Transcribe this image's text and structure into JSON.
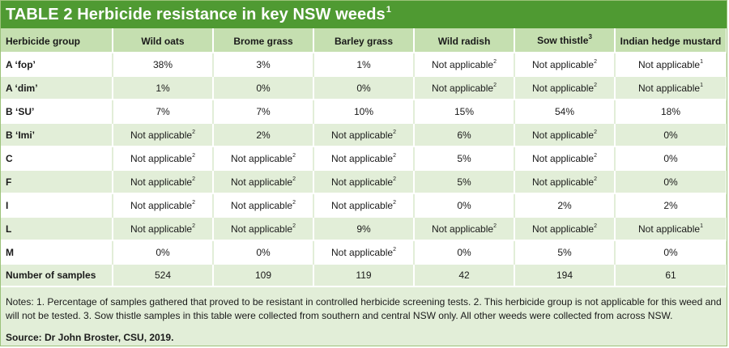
{
  "table": {
    "title": "TABLE 2  Herbicide resistance in key NSW weeds",
    "title_sup": "1",
    "headers": [
      {
        "label": "Herbicide group",
        "sup": ""
      },
      {
        "label": "Wild oats",
        "sup": ""
      },
      {
        "label": "Brome grass",
        "sup": ""
      },
      {
        "label": "Barley grass",
        "sup": ""
      },
      {
        "label": "Wild radish",
        "sup": ""
      },
      {
        "label": "Sow thistle",
        "sup": "3"
      },
      {
        "label": "Indian hedge mustard",
        "sup": ""
      }
    ],
    "rows": [
      {
        "group": "A ‘fop’",
        "cells": [
          {
            "v": "38%",
            "sup": ""
          },
          {
            "v": "3%",
            "sup": ""
          },
          {
            "v": "1%",
            "sup": ""
          },
          {
            "v": "Not applicable",
            "sup": "2"
          },
          {
            "v": "Not applicable",
            "sup": "2"
          },
          {
            "v": "Not applicable",
            "sup": "1"
          }
        ]
      },
      {
        "group": "A ‘dim’",
        "cells": [
          {
            "v": "1%",
            "sup": ""
          },
          {
            "v": "0%",
            "sup": ""
          },
          {
            "v": "0%",
            "sup": ""
          },
          {
            "v": "Not applicable",
            "sup": "2"
          },
          {
            "v": "Not applicable",
            "sup": "2"
          },
          {
            "v": "Not applicable",
            "sup": "1"
          }
        ]
      },
      {
        "group": "B ‘SU’",
        "cells": [
          {
            "v": "7%",
            "sup": ""
          },
          {
            "v": "7%",
            "sup": ""
          },
          {
            "v": "10%",
            "sup": ""
          },
          {
            "v": "15%",
            "sup": ""
          },
          {
            "v": "54%",
            "sup": ""
          },
          {
            "v": "18%",
            "sup": ""
          }
        ]
      },
      {
        "group": "B ‘Imi’",
        "cells": [
          {
            "v": "Not applicable",
            "sup": "2"
          },
          {
            "v": "2%",
            "sup": ""
          },
          {
            "v": "Not applicable",
            "sup": "2"
          },
          {
            "v": "6%",
            "sup": ""
          },
          {
            "v": "Not applicable",
            "sup": "2"
          },
          {
            "v": "0%",
            "sup": ""
          }
        ]
      },
      {
        "group": "C",
        "cells": [
          {
            "v": "Not applicable",
            "sup": "2"
          },
          {
            "v": "Not applicable",
            "sup": "2"
          },
          {
            "v": "Not applicable",
            "sup": "2"
          },
          {
            "v": "5%",
            "sup": ""
          },
          {
            "v": "Not applicable",
            "sup": "2"
          },
          {
            "v": "0%",
            "sup": ""
          }
        ]
      },
      {
        "group": "F",
        "cells": [
          {
            "v": "Not applicable",
            "sup": "2"
          },
          {
            "v": "Not applicable",
            "sup": "2"
          },
          {
            "v": "Not applicable",
            "sup": "2"
          },
          {
            "v": "5%",
            "sup": ""
          },
          {
            "v": "Not applicable",
            "sup": "2"
          },
          {
            "v": "0%",
            "sup": ""
          }
        ]
      },
      {
        "group": "I",
        "cells": [
          {
            "v": "Not applicable",
            "sup": "2"
          },
          {
            "v": "Not applicable",
            "sup": "2"
          },
          {
            "v": "Not applicable",
            "sup": "2"
          },
          {
            "v": "0%",
            "sup": ""
          },
          {
            "v": "2%",
            "sup": ""
          },
          {
            "v": "2%",
            "sup": ""
          }
        ]
      },
      {
        "group": "L",
        "cells": [
          {
            "v": "Not applicable",
            "sup": "2"
          },
          {
            "v": "Not applicable",
            "sup": "2"
          },
          {
            "v": "9%",
            "sup": ""
          },
          {
            "v": "Not applicable",
            "sup": "2"
          },
          {
            "v": "Not applicable",
            "sup": "2"
          },
          {
            "v": "Not applicable",
            "sup": "1"
          }
        ]
      },
      {
        "group": "M",
        "cells": [
          {
            "v": "0%",
            "sup": ""
          },
          {
            "v": "0%",
            "sup": ""
          },
          {
            "v": "Not applicable",
            "sup": "2"
          },
          {
            "v": "0%",
            "sup": ""
          },
          {
            "v": "5%",
            "sup": ""
          },
          {
            "v": "0%",
            "sup": ""
          }
        ]
      }
    ],
    "totals": {
      "label": "Number of samples",
      "values": [
        "524",
        "109",
        "119",
        "42",
        "194",
        "61"
      ]
    }
  },
  "notes": {
    "text": "Notes: 1. Percentage of samples gathered that proved to be resistant in controlled herbicide screening tests. 2. This herbicide group is not applicable for this weed and will not be tested. 3. Sow thistle samples in this table were collected from southern and central NSW only. All other weeds were collected from across NSW.",
    "source": "Source: Dr John Broster, CSU, 2019."
  },
  "colors": {
    "title_bg": "#4f9a32",
    "header_bg": "#c5dfb0",
    "band_bg": "#e2eed8"
  }
}
